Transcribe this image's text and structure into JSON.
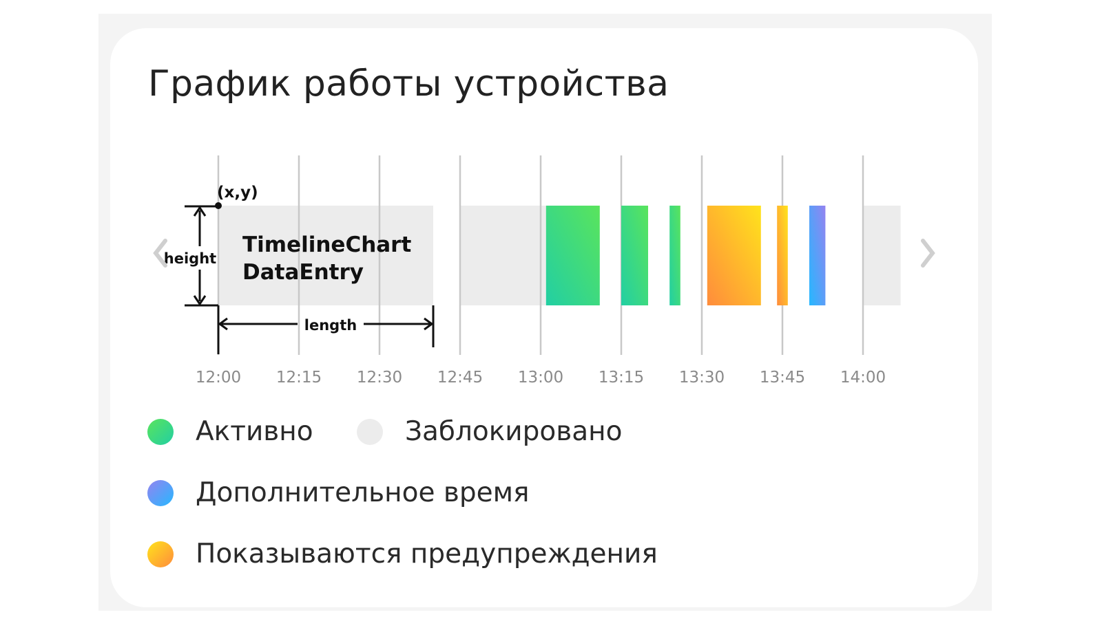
{
  "title": "График работы устройства",
  "chart_data": {
    "type": "timeline",
    "title": "График работы устройства",
    "x_ticks": [
      "12:00",
      "12:15",
      "12:30",
      "12:45",
      "13:00",
      "13:15",
      "13:30",
      "13:45",
      "14:00"
    ],
    "xlim": [
      "12:00",
      "14:07"
    ],
    "grid": true,
    "segments": [
      {
        "start": "12:00",
        "end": "12:40",
        "state": "blocked"
      },
      {
        "start": "12:45",
        "end": "13:01",
        "state": "blocked"
      },
      {
        "start": "13:01",
        "end": "13:11",
        "state": "active"
      },
      {
        "start": "13:15",
        "end": "13:20",
        "state": "active"
      },
      {
        "start": "13:24",
        "end": "13:26",
        "state": "active"
      },
      {
        "start": "13:31",
        "end": "13:41",
        "state": "warning"
      },
      {
        "start": "13:44",
        "end": "13:46",
        "state": "warning"
      },
      {
        "start": "13:50",
        "end": "13:53",
        "state": "extra"
      },
      {
        "start": "14:00",
        "end": "14:07",
        "state": "blocked"
      }
    ],
    "annotations": {
      "point": "(x,y)",
      "height": "height",
      "length": "length",
      "entry_label_line1": "TimelineChart",
      "entry_label_line2": "DataEntry"
    },
    "legend": [
      {
        "state": "active",
        "label": "Активно",
        "colors": [
          "#5ae45c",
          "#22cfa3"
        ]
      },
      {
        "state": "blocked",
        "label": "Заблокировано",
        "colors": [
          "#ececec",
          "#ececec"
        ]
      },
      {
        "state": "extra",
        "label": "Дополнительное время",
        "colors": [
          "#9483f0",
          "#26b8ff"
        ]
      },
      {
        "state": "warning",
        "label": "Показываются предупреждения",
        "colors": [
          "#ffe31c",
          "#ff8c3c"
        ]
      }
    ]
  },
  "nav": {
    "prev_icon": "chevron-left-icon",
    "next_icon": "chevron-right-icon"
  }
}
